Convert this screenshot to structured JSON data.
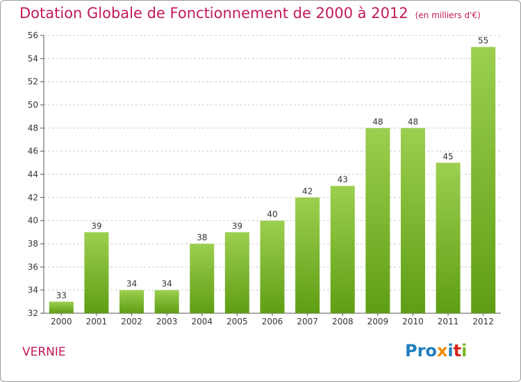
{
  "title": "Dotation Globale de Fonctionnement de 2000 à 2012",
  "subtitle": "(en milliers d'€)",
  "place": "VERNIE",
  "logo": {
    "p1": "Pro",
    "p2": "x",
    "p3": "i",
    "p4": "t",
    "p5": "i"
  },
  "colors": {
    "title": "#c2185b",
    "bar_top": "#9ccf4f",
    "bar_bottom": "#5f9e14",
    "grid": "#cccccc"
  },
  "chart_data": {
    "type": "bar",
    "categories": [
      "2000",
      "2001",
      "2002",
      "2003",
      "2004",
      "2005",
      "2006",
      "2007",
      "2008",
      "2009",
      "2010",
      "2011",
      "2012"
    ],
    "values": [
      33,
      39,
      34,
      34,
      38,
      39,
      40,
      42,
      43,
      48,
      48,
      45,
      55
    ],
    "ylim": [
      32,
      56
    ],
    "yticks": [
      32,
      34,
      36,
      38,
      40,
      42,
      44,
      46,
      48,
      50,
      52,
      54,
      56
    ],
    "grid": true,
    "xlabel": "",
    "ylabel": ""
  }
}
